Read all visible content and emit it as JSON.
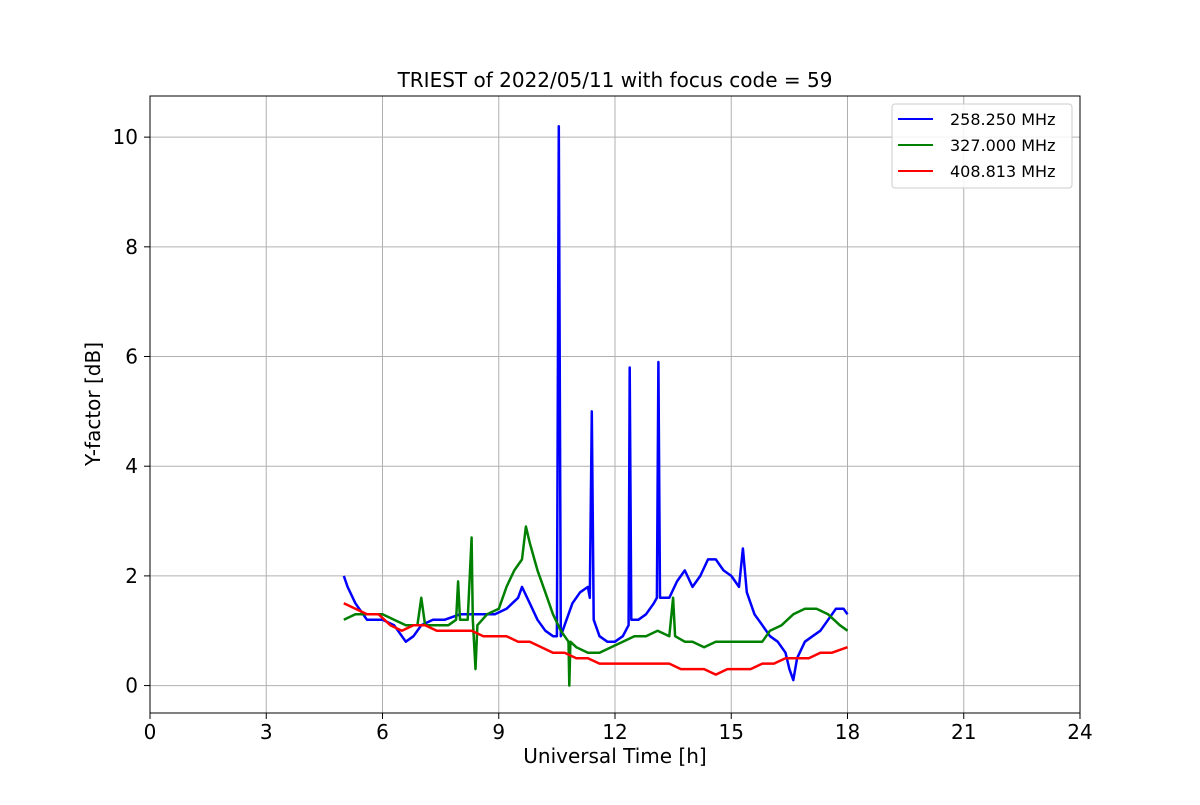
{
  "chart_data": {
    "type": "line",
    "title": "TRIEST of 2022/05/11 with focus code = 59",
    "xlabel": "Universal Time [h]",
    "ylabel": "Y-factor [dB]",
    "xlim": [
      0,
      24
    ],
    "ylim": [
      -0.5,
      10.75
    ],
    "xticks": [
      0,
      3,
      6,
      9,
      12,
      15,
      18,
      21,
      24
    ],
    "yticks": [
      0,
      2,
      4,
      6,
      8,
      10
    ],
    "grid": true,
    "legend_position": "top-right",
    "series": [
      {
        "name": "258.250 MHz",
        "color": "#0000ff",
        "points": [
          [
            5.0,
            2.0
          ],
          [
            5.1,
            1.8
          ],
          [
            5.3,
            1.5
          ],
          [
            5.6,
            1.2
          ],
          [
            6.0,
            1.2
          ],
          [
            6.3,
            1.1
          ],
          [
            6.6,
            0.8
          ],
          [
            6.8,
            0.9
          ],
          [
            7.0,
            1.1
          ],
          [
            7.3,
            1.2
          ],
          [
            7.6,
            1.2
          ],
          [
            8.0,
            1.3
          ],
          [
            8.3,
            1.3
          ],
          [
            8.6,
            1.3
          ],
          [
            8.9,
            1.3
          ],
          [
            9.2,
            1.4
          ],
          [
            9.5,
            1.6
          ],
          [
            9.6,
            1.8
          ],
          [
            9.8,
            1.5
          ],
          [
            10.0,
            1.2
          ],
          [
            10.2,
            1.0
          ],
          [
            10.4,
            0.9
          ],
          [
            10.5,
            0.9
          ],
          [
            10.55,
            10.2
          ],
          [
            10.6,
            0.9
          ],
          [
            10.7,
            1.1
          ],
          [
            10.9,
            1.5
          ],
          [
            11.1,
            1.7
          ],
          [
            11.3,
            1.8
          ],
          [
            11.35,
            1.6
          ],
          [
            11.4,
            5.0
          ],
          [
            11.45,
            1.2
          ],
          [
            11.6,
            0.9
          ],
          [
            11.8,
            0.8
          ],
          [
            12.0,
            0.8
          ],
          [
            12.2,
            0.9
          ],
          [
            12.35,
            1.1
          ],
          [
            12.38,
            5.8
          ],
          [
            12.42,
            1.2
          ],
          [
            12.6,
            1.2
          ],
          [
            12.8,
            1.3
          ],
          [
            13.0,
            1.5
          ],
          [
            13.08,
            1.6
          ],
          [
            13.12,
            5.9
          ],
          [
            13.16,
            1.6
          ],
          [
            13.4,
            1.6
          ],
          [
            13.6,
            1.9
          ],
          [
            13.8,
            2.1
          ],
          [
            14.0,
            1.8
          ],
          [
            14.2,
            2.0
          ],
          [
            14.4,
            2.3
          ],
          [
            14.6,
            2.3
          ],
          [
            14.8,
            2.1
          ],
          [
            15.0,
            2.0
          ],
          [
            15.2,
            1.8
          ],
          [
            15.3,
            2.5
          ],
          [
            15.4,
            1.7
          ],
          [
            15.6,
            1.3
          ],
          [
            15.8,
            1.1
          ],
          [
            16.0,
            0.9
          ],
          [
            16.2,
            0.8
          ],
          [
            16.4,
            0.6
          ],
          [
            16.5,
            0.3
          ],
          [
            16.6,
            0.1
          ],
          [
            16.7,
            0.5
          ],
          [
            16.9,
            0.8
          ],
          [
            17.1,
            0.9
          ],
          [
            17.3,
            1.0
          ],
          [
            17.5,
            1.2
          ],
          [
            17.7,
            1.4
          ],
          [
            17.9,
            1.4
          ],
          [
            18.0,
            1.3
          ]
        ]
      },
      {
        "name": "327.000 MHz",
        "color": "#008000",
        "points": [
          [
            5.0,
            1.2
          ],
          [
            5.3,
            1.3
          ],
          [
            5.6,
            1.3
          ],
          [
            6.0,
            1.3
          ],
          [
            6.3,
            1.2
          ],
          [
            6.6,
            1.1
          ],
          [
            6.9,
            1.1
          ],
          [
            7.0,
            1.6
          ],
          [
            7.1,
            1.1
          ],
          [
            7.4,
            1.1
          ],
          [
            7.7,
            1.1
          ],
          [
            7.9,
            1.2
          ],
          [
            7.95,
            1.9
          ],
          [
            8.0,
            1.2
          ],
          [
            8.2,
            1.2
          ],
          [
            8.3,
            2.7
          ],
          [
            8.33,
            1.2
          ],
          [
            8.4,
            0.3
          ],
          [
            8.45,
            1.1
          ],
          [
            8.7,
            1.3
          ],
          [
            9.0,
            1.4
          ],
          [
            9.2,
            1.8
          ],
          [
            9.4,
            2.1
          ],
          [
            9.6,
            2.3
          ],
          [
            9.7,
            2.9
          ],
          [
            9.8,
            2.6
          ],
          [
            10.0,
            2.1
          ],
          [
            10.2,
            1.7
          ],
          [
            10.4,
            1.3
          ],
          [
            10.6,
            1.0
          ],
          [
            10.8,
            0.8
          ],
          [
            10.82,
            0.0
          ],
          [
            10.85,
            0.8
          ],
          [
            11.0,
            0.7
          ],
          [
            11.3,
            0.6
          ],
          [
            11.6,
            0.6
          ],
          [
            11.9,
            0.7
          ],
          [
            12.2,
            0.8
          ],
          [
            12.5,
            0.9
          ],
          [
            12.8,
            0.9
          ],
          [
            13.1,
            1.0
          ],
          [
            13.4,
            0.9
          ],
          [
            13.5,
            1.6
          ],
          [
            13.55,
            0.9
          ],
          [
            13.8,
            0.8
          ],
          [
            14.0,
            0.8
          ],
          [
            14.3,
            0.7
          ],
          [
            14.6,
            0.8
          ],
          [
            14.9,
            0.8
          ],
          [
            15.2,
            0.8
          ],
          [
            15.5,
            0.8
          ],
          [
            15.8,
            0.8
          ],
          [
            16.0,
            1.0
          ],
          [
            16.3,
            1.1
          ],
          [
            16.6,
            1.3
          ],
          [
            16.9,
            1.4
          ],
          [
            17.2,
            1.4
          ],
          [
            17.5,
            1.3
          ],
          [
            17.8,
            1.1
          ],
          [
            18.0,
            1.0
          ]
        ]
      },
      {
        "name": "408.813 MHz",
        "color": "#ff0000",
        "points": [
          [
            5.0,
            1.5
          ],
          [
            5.3,
            1.4
          ],
          [
            5.6,
            1.3
          ],
          [
            5.9,
            1.3
          ],
          [
            6.2,
            1.1
          ],
          [
            6.5,
            1.0
          ],
          [
            6.8,
            1.1
          ],
          [
            7.1,
            1.1
          ],
          [
            7.4,
            1.0
          ],
          [
            7.7,
            1.0
          ],
          [
            8.0,
            1.0
          ],
          [
            8.3,
            1.0
          ],
          [
            8.6,
            0.9
          ],
          [
            8.9,
            0.9
          ],
          [
            9.2,
            0.9
          ],
          [
            9.5,
            0.8
          ],
          [
            9.8,
            0.8
          ],
          [
            10.1,
            0.7
          ],
          [
            10.4,
            0.6
          ],
          [
            10.7,
            0.6
          ],
          [
            11.0,
            0.5
          ],
          [
            11.3,
            0.5
          ],
          [
            11.6,
            0.4
          ],
          [
            11.9,
            0.4
          ],
          [
            12.2,
            0.4
          ],
          [
            12.5,
            0.4
          ],
          [
            12.8,
            0.4
          ],
          [
            13.1,
            0.4
          ],
          [
            13.4,
            0.4
          ],
          [
            13.7,
            0.3
          ],
          [
            14.0,
            0.3
          ],
          [
            14.3,
            0.3
          ],
          [
            14.6,
            0.2
          ],
          [
            14.9,
            0.3
          ],
          [
            15.2,
            0.3
          ],
          [
            15.5,
            0.3
          ],
          [
            15.8,
            0.4
          ],
          [
            16.1,
            0.4
          ],
          [
            16.4,
            0.5
          ],
          [
            16.7,
            0.5
          ],
          [
            17.0,
            0.5
          ],
          [
            17.3,
            0.6
          ],
          [
            17.6,
            0.6
          ],
          [
            18.0,
            0.7
          ]
        ]
      }
    ]
  }
}
